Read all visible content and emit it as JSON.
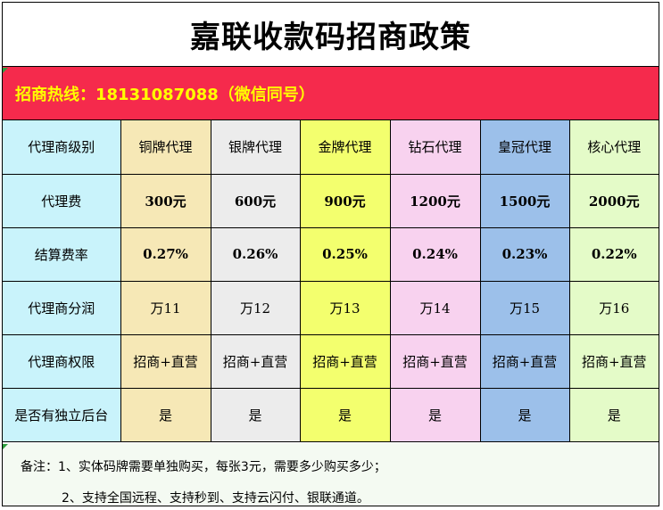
{
  "title": "嘉联收款码招商政策",
  "hotline": "招商热线：18131087088（微信同号）",
  "table": {
    "header": {
      "label": "代理商级别",
      "levels": [
        "铜牌代理",
        "银牌代理",
        "金牌代理",
        "钻石代理",
        "皇冠代理",
        "核心代理"
      ]
    },
    "rows": [
      {
        "label": "代理费",
        "values": [
          "300元",
          "600元",
          "900元",
          "1200元",
          "1500元",
          "2000元"
        ]
      },
      {
        "label": "结算费率",
        "values": [
          "0.27%",
          "0.26%",
          "0.25%",
          "0.24%",
          "0.23%",
          "0.22%"
        ]
      },
      {
        "label": "代理商分润",
        "values": [
          "万11",
          "万12",
          "万13",
          "万14",
          "万15",
          "万16"
        ]
      },
      {
        "label": "代理商权限",
        "values": [
          "招商+直营",
          "招商+直营",
          "招商+直营",
          "招商+直营",
          "招商+直营",
          "招商+直营"
        ]
      },
      {
        "label": "是否有独立后台",
        "values": [
          "是",
          "是",
          "是",
          "是",
          "是",
          "是"
        ]
      }
    ]
  },
  "notes": {
    "line1": "备注：1、实体码牌需要单独购买，每张3元，需要多少购买多少；",
    "line2": "2、支持全国远程、支持秒到、支持云闪付、银联通道。"
  },
  "colors": {
    "hotline_bg": "#f52a4c",
    "hotline_text": "#ffff00",
    "label_col": "#c9f3fb",
    "copper": "#f6e8b6",
    "silver": "#ececec",
    "gold": "#f3ff6e",
    "diamond": "#f8d2ef",
    "crown": "#9cc0ea",
    "core": "#e4fbc8"
  }
}
